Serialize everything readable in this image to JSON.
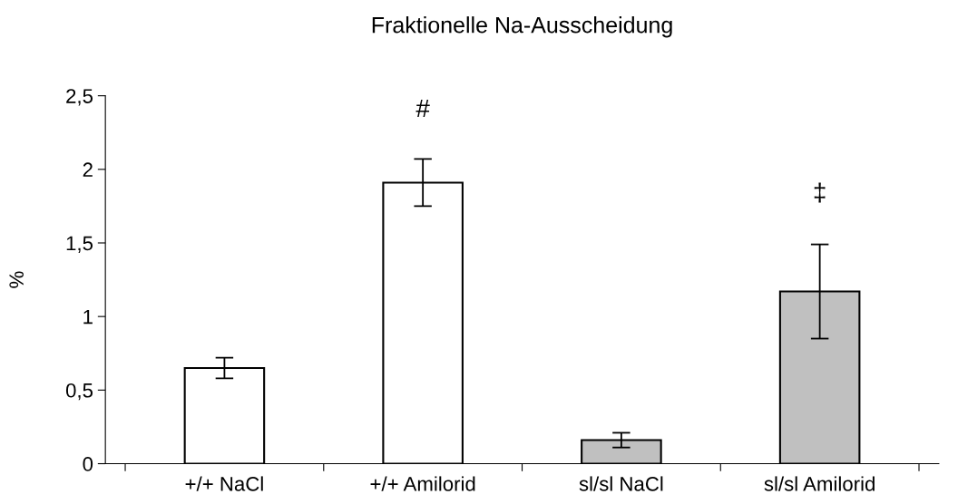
{
  "chart_data": {
    "type": "bar",
    "title": "Fraktionelle Na-Ausscheidung",
    "ylabel": "%",
    "categories": [
      "+/+ NaCl",
      "+/+ Amilorid",
      "sl/sl NaCl",
      "sl/sl Amilorid"
    ],
    "values": [
      0.65,
      1.91,
      0.16,
      1.17
    ],
    "colors": [
      "#ffffff",
      "#ffffff",
      "#c0c0c0",
      "#c0c0c0"
    ],
    "errors": [
      0.07,
      0.16,
      0.05,
      0.32
    ],
    "ylim": [
      0,
      2.5
    ],
    "yticks": [
      {
        "value": 0,
        "label": "0"
      },
      {
        "value": 0.5,
        "label": "0,5"
      },
      {
        "value": 1,
        "label": "1"
      },
      {
        "value": 1.5,
        "label": "1,5"
      },
      {
        "value": 2,
        "label": "2"
      },
      {
        "value": 2.5,
        "label": "2,5"
      }
    ],
    "annotations": [
      "#",
      "‡"
    ],
    "grid": false,
    "legend": false
  }
}
